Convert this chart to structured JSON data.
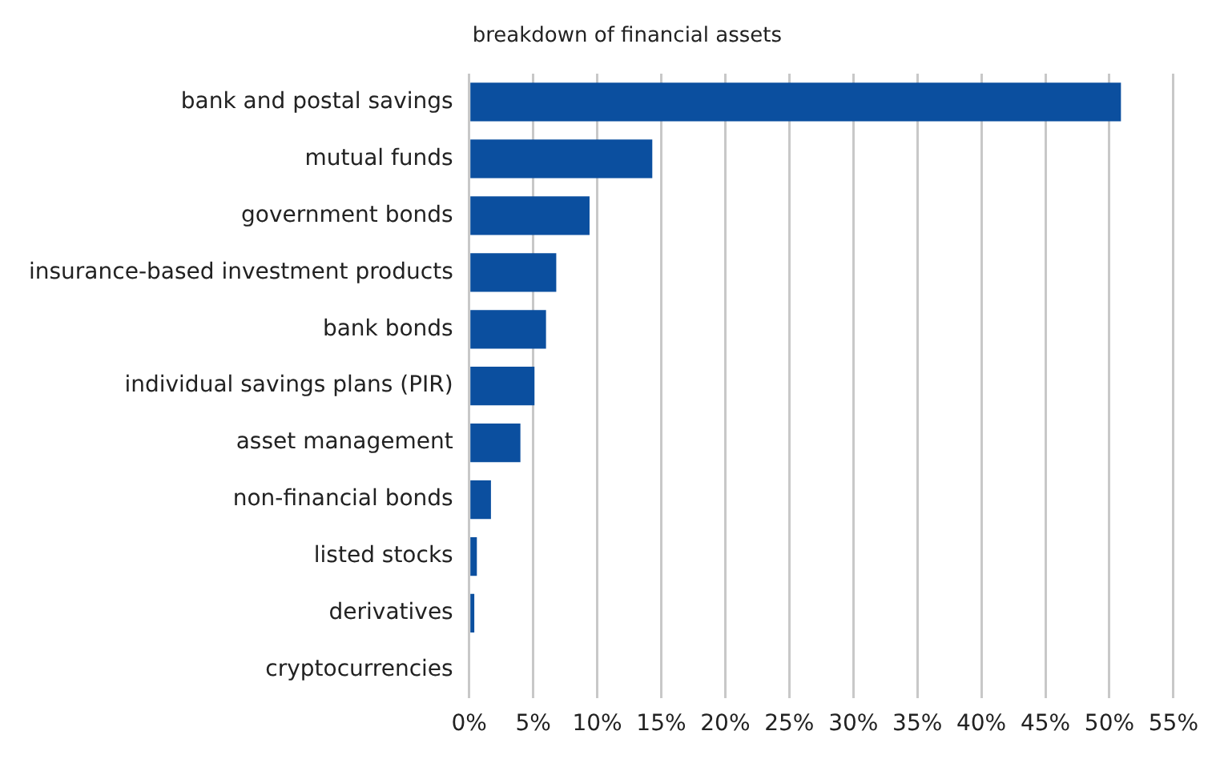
{
  "chart_data": {
    "type": "bar",
    "orientation": "horizontal",
    "title": "breakdown of financial assets",
    "categories": [
      "bank and postal savings",
      "mutual funds",
      "government bonds",
      "insurance-based investment products",
      "bank bonds",
      "individual savings plans (PIR)",
      "asset management",
      "non-financial bonds",
      "listed stocks",
      "derivatives",
      "cryptocurrencies"
    ],
    "values": [
      50.9,
      14.3,
      9.4,
      6.8,
      6.0,
      5.1,
      4.0,
      1.7,
      0.6,
      0.4,
      0
    ],
    "color": "#0b4f9f",
    "xlim": [
      0,
      55
    ],
    "xticks": [
      {
        "value": 0,
        "label": "0%"
      },
      {
        "value": 5,
        "label": "5%"
      },
      {
        "value": 10,
        "label": "10%"
      },
      {
        "value": 15,
        "label": "15%"
      },
      {
        "value": 20,
        "label": "20%"
      },
      {
        "value": 25,
        "label": "25%"
      },
      {
        "value": 30,
        "label": "30%"
      },
      {
        "value": 35,
        "label": "35%"
      },
      {
        "value": 40,
        "label": "40%"
      },
      {
        "value": 45,
        "label": "45%"
      },
      {
        "value": 50,
        "label": "50%"
      },
      {
        "value": 55,
        "label": "55%"
      }
    ],
    "grid": "x",
    "legend": false
  }
}
